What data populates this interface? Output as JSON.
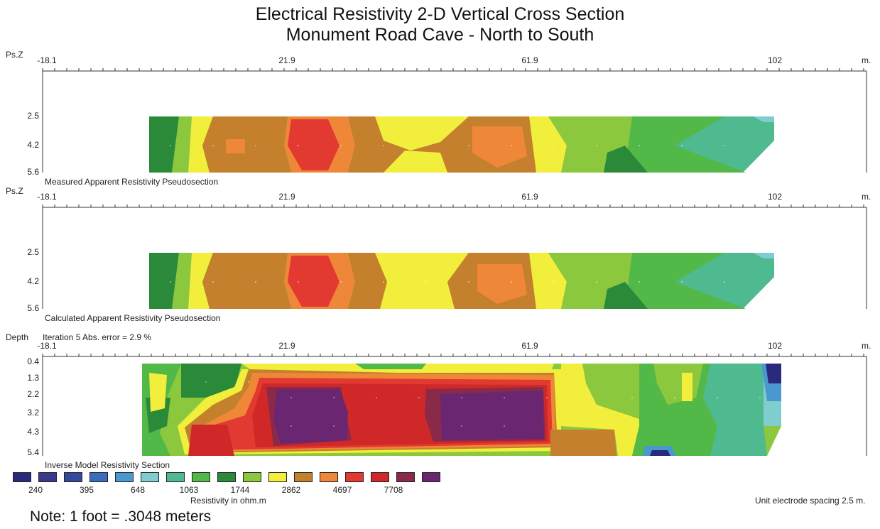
{
  "title_line1": "Electrical Resistivity 2-D Vertical Cross Section",
  "title_line2": "Monument Road Cave - North to South",
  "x_ticks": [
    "-18.1",
    "21.9",
    "61.9",
    "102"
  ],
  "x_unit": "m.",
  "panels": [
    {
      "y_label": "Ps.Z",
      "y_ticks": [
        "2.5",
        "4.2",
        "5.6"
      ],
      "caption": "Measured Apparent Resistivity Pseudosection"
    },
    {
      "y_label": "Ps.Z",
      "y_ticks": [
        "2.5",
        "4.2",
        "5.6"
      ],
      "caption": "Calculated Apparent Resistivity Pseudosection"
    },
    {
      "y_label": "Depth",
      "y_ticks": [
        "0.4",
        "1.3",
        "2.2",
        "3.2",
        "4.3",
        "5.4"
      ],
      "caption": "Inverse Model Resistivity Section",
      "header_note": "Iteration 5 Abs. error = 2.9 %"
    }
  ],
  "legend": {
    "values": [
      "240",
      "395",
      "648",
      "1063",
      "1744",
      "2862",
      "4697",
      "7708"
    ],
    "colors": [
      "#2a2a7c",
      "#3a3a8c",
      "#34489c",
      "#3c6cbc",
      "#4a98d0",
      "#7fcdcf",
      "#4fb98f",
      "#52b848",
      "#2a8a3a",
      "#8cc83e",
      "#f2ee3c",
      "#c4802c",
      "#ee8838",
      "#e23a30",
      "#d02828",
      "#8a2a48",
      "#6a2670"
    ],
    "unit_label": "Resistivity in ohm.m"
  },
  "spacing_note": "Unit electrode spacing 2.5 m.",
  "footnote": "Note: 1 foot = .3048 meters",
  "chart_data": [
    {
      "type": "heatmap",
      "title": "Measured Apparent Resistivity Pseudosection",
      "xlabel": "m.",
      "ylabel": "Ps.Z",
      "x": [
        -18.1,
        21.9,
        61.9,
        102
      ],
      "y_levels": [
        2.5,
        4.2,
        5.6
      ],
      "xlim": [
        -18.1,
        102
      ],
      "colorscale_ohm_m": [
        240,
        395,
        648,
        1063,
        1744,
        2862,
        4697,
        7708
      ],
      "zones": [
        {
          "x_range": [
            0,
            5
          ],
          "resistivity_class": "2862 band (dark green)"
        },
        {
          "x_range": [
            5,
            13
          ],
          "resistivity_class": "1744-2862 (green / yellow)"
        },
        {
          "x_range": [
            13,
            22
          ],
          "resistivity_class": "4697 (orange-brown)"
        },
        {
          "x_range": [
            22,
            30
          ],
          "resistivity_class": "7708 (red)"
        },
        {
          "x_range": [
            30,
            45
          ],
          "resistivity_class": "2862-4697 (yellow / brown)"
        },
        {
          "x_range": [
            45,
            59
          ],
          "resistivity_class": "4697 (orange)"
        },
        {
          "x_range": [
            59,
            78
          ],
          "resistivity_class": "1744-2862 (yellow / green)"
        },
        {
          "x_range": [
            78,
            102
          ],
          "resistivity_class": "1063-1744 (green / teal)"
        }
      ]
    },
    {
      "type": "heatmap",
      "title": "Calculated Apparent Resistivity Pseudosection",
      "xlabel": "m.",
      "ylabel": "Ps.Z",
      "x": [
        -18.1,
        21.9,
        61.9,
        102
      ],
      "y_levels": [
        2.5,
        4.2,
        5.6
      ],
      "xlim": [
        -18.1,
        102
      ],
      "colorscale_ohm_m": [
        240,
        395,
        648,
        1063,
        1744,
        2862,
        4697,
        7708
      ],
      "zones": [
        {
          "x_range": [
            0,
            5
          ],
          "resistivity_class": "2862 band (dark green)"
        },
        {
          "x_range": [
            5,
            13
          ],
          "resistivity_class": "1744-2862 (green / yellow)"
        },
        {
          "x_range": [
            13,
            22
          ],
          "resistivity_class": "4697 (orange-brown)"
        },
        {
          "x_range": [
            22,
            30
          ],
          "resistivity_class": "7708 (red)"
        },
        {
          "x_range": [
            30,
            45
          ],
          "resistivity_class": "2862-4697 (yellow / brown)"
        },
        {
          "x_range": [
            45,
            59
          ],
          "resistivity_class": "4697 (orange)"
        },
        {
          "x_range": [
            59,
            78
          ],
          "resistivity_class": "1744-2862 (yellow / green)"
        },
        {
          "x_range": [
            78,
            102
          ],
          "resistivity_class": "1063-1744 (green / teal)"
        }
      ]
    },
    {
      "type": "heatmap",
      "title": "Inverse Model Resistivity Section",
      "xlabel": "m.",
      "ylabel": "Depth",
      "x": [
        -18.1,
        21.9,
        61.9,
        102
      ],
      "y_levels": [
        0.4,
        1.3,
        2.2,
        3.2,
        4.3,
        5.4
      ],
      "xlim": [
        -18.1,
        102
      ],
      "iteration": 5,
      "abs_error_percent": 2.9,
      "colorscale_ohm_m": [
        240,
        395,
        648,
        1063,
        1744,
        2862,
        4697,
        7708
      ],
      "anomalies": [
        {
          "x_range": [
            16,
            26
          ],
          "depth_range": [
            1.3,
            5.0
          ],
          "resistivity_class": ">7708 (purple, high)"
        },
        {
          "x_range": [
            46,
            61
          ],
          "depth_range": [
            1.3,
            4.5
          ],
          "resistivity_class": ">7708 (purple, high)"
        },
        {
          "x_range": [
            26,
            46
          ],
          "depth_range": [
            2.2,
            4.5
          ],
          "resistivity_class": "4697-7708 (red)"
        },
        {
          "x_range": [
            95,
            102
          ],
          "depth_range": [
            0.4,
            2.2
          ],
          "resistivity_class": "240-648 (blue, low)"
        }
      ]
    }
  ]
}
